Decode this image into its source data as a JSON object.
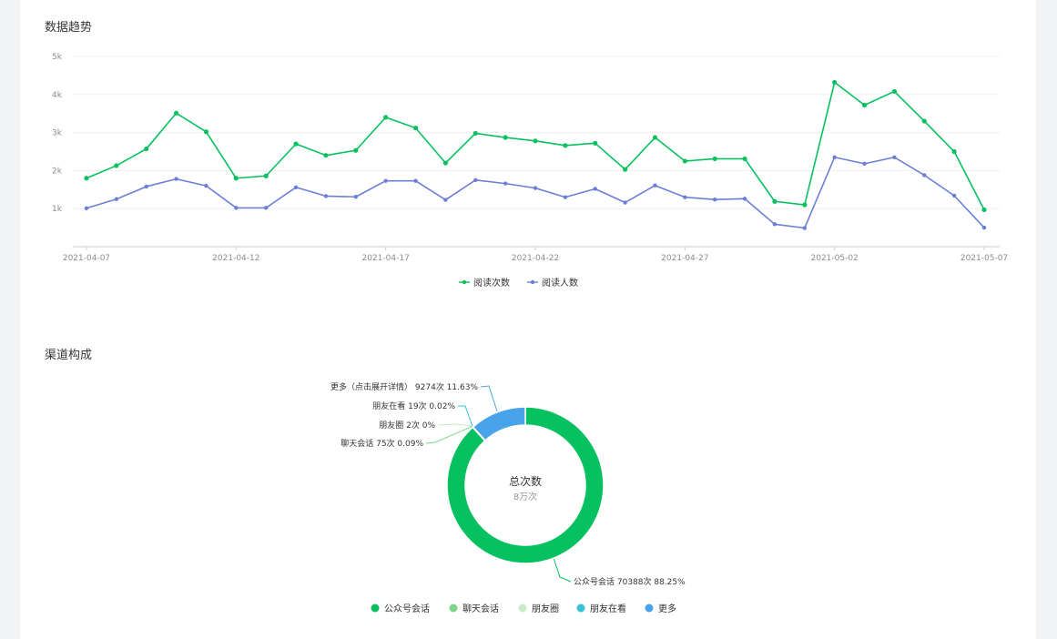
{
  "sections": {
    "trend_title": "数据趋势",
    "channel_title": "渠道构成"
  },
  "chart_data": [
    {
      "type": "line",
      "y_ticks": [
        "1k",
        "2k",
        "3k",
        "4k",
        "5k"
      ],
      "ylim": [
        0,
        5000
      ],
      "grid": true,
      "legend_position": "bottom-center",
      "x": [
        "2021-04-07",
        "2021-04-08",
        "2021-04-09",
        "2021-04-10",
        "2021-04-11",
        "2021-04-12",
        "2021-04-13",
        "2021-04-14",
        "2021-04-15",
        "2021-04-16",
        "2021-04-17",
        "2021-04-18",
        "2021-04-19",
        "2021-04-20",
        "2021-04-21",
        "2021-04-22",
        "2021-04-23",
        "2021-04-24",
        "2021-04-25",
        "2021-04-26",
        "2021-04-27",
        "2021-04-28",
        "2021-04-29",
        "2021-04-30",
        "2021-05-01",
        "2021-05-02",
        "2021-05-03",
        "2021-05-04",
        "2021-05-05",
        "2021-05-06",
        "2021-05-07"
      ],
      "x_tick_labels": [
        "2021-04-07",
        "2021-04-12",
        "2021-04-17",
        "2021-04-22",
        "2021-04-27",
        "2021-05-02",
        "2021-05-07"
      ],
      "series": [
        {
          "name": "阅读次数",
          "color": "#07c160",
          "values": [
            1800,
            2130,
            2570,
            3510,
            3020,
            1800,
            1860,
            2700,
            2400,
            2530,
            3400,
            3120,
            2200,
            2980,
            2870,
            2780,
            2660,
            2720,
            2030,
            2870,
            2250,
            2310,
            2310,
            1190,
            1100,
            4320,
            3720,
            4080,
            3300,
            2500,
            970
          ]
        },
        {
          "name": "阅读人数",
          "color": "#6b7fd7",
          "values": [
            1010,
            1250,
            1580,
            1780,
            1600,
            1020,
            1020,
            1560,
            1330,
            1310,
            1730,
            1730,
            1230,
            1750,
            1660,
            1540,
            1300,
            1520,
            1160,
            1610,
            1300,
            1240,
            1260,
            590,
            490,
            2350,
            2180,
            2350,
            1880,
            1340,
            500
          ]
        }
      ]
    },
    {
      "type": "pie",
      "center_title": "总次数",
      "center_value": "8万次",
      "slices": [
        {
          "name": "公众号会话",
          "value": 70388,
          "percent": 88.25,
          "color": "#07c160",
          "label": "公众号会话 70388次 88.25%"
        },
        {
          "name": "聊天会话",
          "value": 75,
          "percent": 0.09,
          "color": "#7dd58a",
          "label": "聊天会话 75次 0.09%"
        },
        {
          "name": "朋友圈",
          "value": 2,
          "percent": 0,
          "color": "#c7ebc5",
          "label": "朋友圈 2次 0%"
        },
        {
          "name": "朋友在看",
          "value": 19,
          "percent": 0.02,
          "color": "#39c3d6",
          "label": "朋友在看 19次 0.02%"
        },
        {
          "name": "更多",
          "value": 9274,
          "percent": 11.63,
          "color": "#4aa3e8",
          "label": "更多（点击展开详情） 9274次 11.63%"
        }
      ]
    }
  ]
}
